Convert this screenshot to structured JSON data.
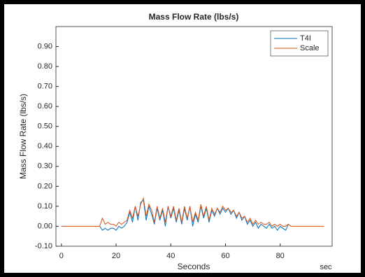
{
  "chart_data": {
    "type": "line",
    "title": "Mass Flow Rate (lbs/s)",
    "xlabel": "Seconds",
    "ylabel": "Mass Flow Rate (lbs/s)",
    "annotation": "sec",
    "x": [
      0,
      1,
      2,
      3,
      4,
      5,
      6,
      7,
      8,
      9,
      10,
      11,
      12,
      13,
      14,
      15,
      16,
      17,
      18,
      19,
      20,
      21,
      22,
      23,
      24,
      25,
      26,
      27,
      28,
      29,
      30,
      31,
      32,
      33,
      34,
      35,
      36,
      37,
      38,
      39,
      40,
      41,
      42,
      43,
      44,
      45,
      46,
      47,
      48,
      49,
      50,
      51,
      52,
      53,
      54,
      55,
      56,
      57,
      58,
      59,
      60,
      61,
      62,
      63,
      64,
      65,
      66,
      67,
      68,
      69,
      70,
      71,
      72,
      73,
      74,
      75,
      76,
      77,
      78,
      79,
      80,
      81,
      82,
      83,
      84,
      85,
      86,
      87,
      88,
      89,
      90,
      91,
      92,
      93,
      94,
      95,
      96
    ],
    "series": [
      {
        "name": "T4I",
        "color": "#0072bd",
        "values": [
          0,
          0,
          0,
          0,
          0,
          0,
          0,
          0,
          0,
          0,
          0,
          0,
          0,
          0,
          0,
          -0.02,
          -0.01,
          -0.02,
          -0.01,
          -0.01,
          -0.02,
          0,
          -0.01,
          0,
          0.02,
          0.07,
          0.02,
          0.1,
          0.03,
          0.12,
          0.13,
          0.03,
          0.1,
          0.06,
          0.01,
          0.09,
          0.03,
          0.08,
          0,
          0.1,
          0.04,
          0.09,
          0.02,
          0.08,
          0.01,
          0.09,
          0.03,
          0.1,
          0,
          0.06,
          0.02,
          0.1,
          0.04,
          0.09,
          0.02,
          0.08,
          0.05,
          0.09,
          0.06,
          0.09,
          0.07,
          0.09,
          0.06,
          0.08,
          0.04,
          0.07,
          0.03,
          0.05,
          0.01,
          0.03,
          0,
          0.02,
          -0.01,
          0.01,
          0,
          -0.01,
          0.01,
          -0.01,
          0,
          -0.02,
          0,
          -0.01,
          -0.02,
          0.01,
          0,
          0,
          0,
          0,
          0,
          0,
          0,
          0,
          0,
          0,
          0,
          0,
          0
        ]
      },
      {
        "name": "Scale",
        "color": "#d95319",
        "values": [
          0,
          0,
          0,
          0,
          0,
          0,
          0,
          0,
          0,
          0,
          0,
          0,
          0,
          0,
          0,
          0.04,
          0.01,
          0.02,
          0.01,
          0.01,
          0,
          0.02,
          0.01,
          0.02,
          0.03,
          0.08,
          0.04,
          0.1,
          0.05,
          0.11,
          0.14,
          0.05,
          0.11,
          0.08,
          0.02,
          0.1,
          0.04,
          0.09,
          0.02,
          0.1,
          0.05,
          0.1,
          0.03,
          0.09,
          0.02,
          0.1,
          0.04,
          0.1,
          0.02,
          0.07,
          0.03,
          0.11,
          0.05,
          0.1,
          0.03,
          0.09,
          0.06,
          0.09,
          0.07,
          0.1,
          0.08,
          0.09,
          0.07,
          0.08,
          0.05,
          0.07,
          0.04,
          0.05,
          0.02,
          0.04,
          0.01,
          0.03,
          0.01,
          0.02,
          0.01,
          0.01,
          0.02,
          0,
          0.01,
          0,
          0.01,
          0,
          0,
          0.01,
          0,
          0,
          0,
          0,
          0,
          0,
          0,
          0,
          0,
          0,
          0,
          0,
          0
        ]
      }
    ],
    "xlim": [
      -2,
      99
    ],
    "xticks": [
      0,
      20,
      40,
      60,
      80
    ],
    "ylim": [
      -0.1,
      1.0
    ],
    "yticks": [
      {
        "value": -0.1,
        "label": "-0.10"
      },
      {
        "value": 0,
        "label": "0.00"
      },
      {
        "value": 0.1,
        "label": "0.10"
      },
      {
        "value": 0.2,
        "label": "0.20"
      },
      {
        "value": 0.3,
        "label": "0.30"
      },
      {
        "value": 0.4,
        "label": "0.40"
      },
      {
        "value": 0.5,
        "label": "0.50"
      },
      {
        "value": 0.6,
        "label": "0.60"
      },
      {
        "value": 0.7,
        "label": "0.70"
      },
      {
        "value": 0.8,
        "label": "0.80"
      },
      {
        "value": 0.9,
        "label": "0.90"
      }
    ],
    "legend": "northeast"
  }
}
